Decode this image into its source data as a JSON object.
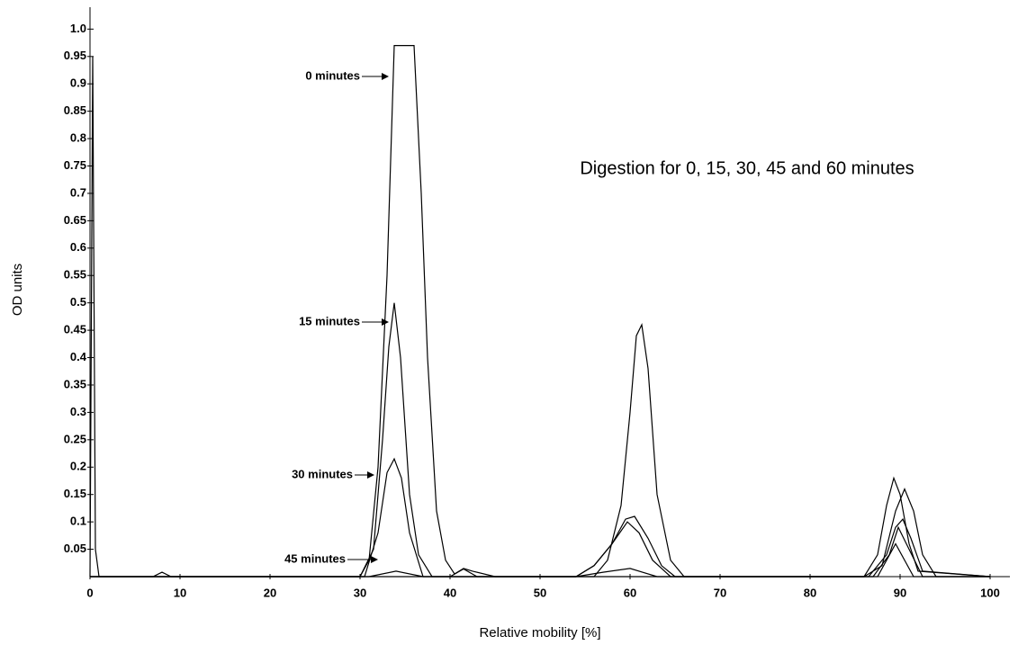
{
  "chart_data": {
    "type": "line",
    "title": "Digestion for 0, 15, 30, 45 and 60 minutes",
    "x_label": "Relative mobility [%]",
    "y_label": "OD units",
    "xlim": [
      0,
      102
    ],
    "ylim": [
      0,
      1.04
    ],
    "xticks": [
      0,
      10,
      20,
      30,
      40,
      50,
      60,
      70,
      80,
      90,
      100
    ],
    "yticks": [
      0.05,
      0.1,
      0.15,
      0.2,
      0.25,
      0.3,
      0.35,
      0.4,
      0.45,
      0.5,
      0.55,
      0.6,
      0.65,
      0.7,
      0.75,
      0.8,
      0.85,
      0.9,
      0.95,
      {
        "value": 1,
        "label": "1.0"
      }
    ],
    "series": [
      {
        "name": "0 minutes",
        "color": "#000000",
        "x": [
          0,
          0.3,
          0.6,
          1,
          5,
          30,
          31,
          32,
          33,
          33.8,
          34.5,
          36,
          36.8,
          37.5,
          38.5,
          39.5,
          40.5,
          41.5,
          42.5,
          45,
          56,
          57.5,
          59,
          60,
          60.7,
          61.3,
          62,
          63,
          64.5,
          66,
          86,
          88,
          89.5,
          90.5,
          91.5,
          92.5,
          94,
          100
        ],
        "values": [
          0,
          0.95,
          0.05,
          0,
          0,
          0,
          0.03,
          0.2,
          0.55,
          0.97,
          0.97,
          0.97,
          0.7,
          0.4,
          0.12,
          0.03,
          0.005,
          0.015,
          0.01,
          0,
          0,
          0.03,
          0.13,
          0.3,
          0.44,
          0.46,
          0.38,
          0.15,
          0.03,
          0,
          0,
          0.02,
          0.12,
          0.16,
          0.12,
          0.04,
          0,
          0
        ]
      },
      {
        "name": "15 minutes",
        "color": "#000000",
        "x": [
          0,
          30,
          31.5,
          32.5,
          33.2,
          33.8,
          34.5,
          35.5,
          36.5,
          38,
          54,
          56,
          58,
          59.5,
          60.5,
          62,
          63.5,
          65,
          86,
          87.5,
          88.5,
          89.3,
          90,
          91,
          92,
          100
        ],
        "values": [
          0,
          0,
          0.05,
          0.25,
          0.42,
          0.5,
          0.4,
          0.15,
          0.04,
          0,
          0,
          0.02,
          0.06,
          0.105,
          0.11,
          0.07,
          0.02,
          0,
          0,
          0.04,
          0.13,
          0.18,
          0.15,
          0.06,
          0.01,
          0
        ]
      },
      {
        "name": "30 minutes",
        "color": "#000000",
        "x": [
          0,
          30.5,
          32,
          33,
          33.8,
          34.6,
          35.5,
          37,
          54,
          56,
          58,
          59.7,
          61,
          62.5,
          64.5,
          86.5,
          88.5,
          89.5,
          90.3,
          91.2,
          92.5,
          100
        ],
        "values": [
          0,
          0,
          0.08,
          0.19,
          0.215,
          0.18,
          0.08,
          0,
          0,
          0.02,
          0.06,
          0.1,
          0.08,
          0.03,
          0,
          0,
          0.04,
          0.09,
          0.105,
          0.07,
          0.01,
          0
        ]
      },
      {
        "name": "45 minutes",
        "color": "#000000",
        "x": [
          0,
          31,
          34,
          37,
          54,
          57,
          60,
          63,
          87,
          88.8,
          89.8,
          91,
          92.5,
          100
        ],
        "values": [
          0,
          0,
          0.01,
          0,
          0,
          0.008,
          0.015,
          0,
          0,
          0.04,
          0.09,
          0.05,
          0,
          0
        ]
      },
      {
        "color": "#000000",
        "x": [
          0,
          7,
          8,
          9,
          40,
          41.5,
          43,
          87.5,
          89.5,
          91.5,
          100
        ],
        "values": [
          0,
          0,
          0.008,
          0,
          0,
          0.014,
          0,
          0,
          0.06,
          0,
          0
        ]
      }
    ]
  }
}
